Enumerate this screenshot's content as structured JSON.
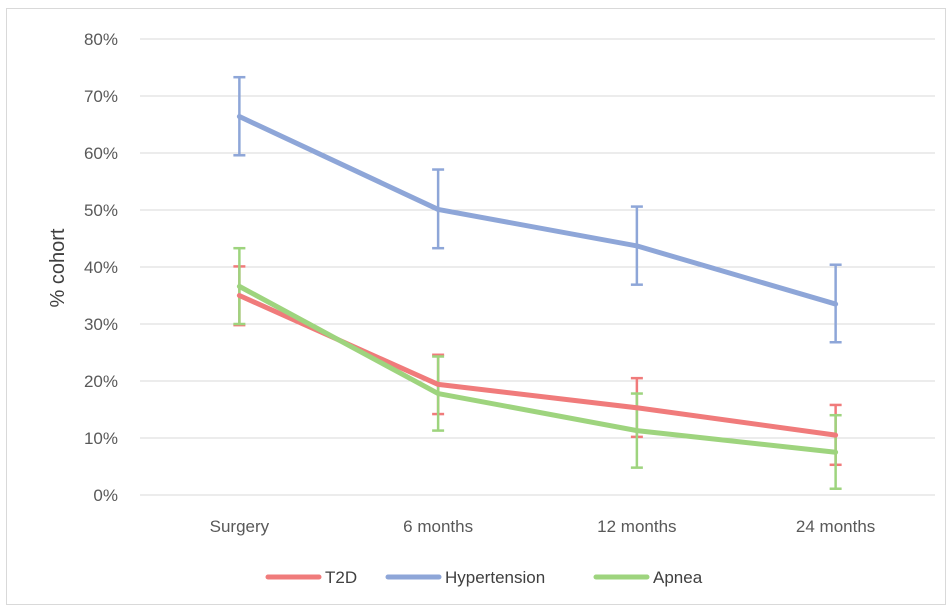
{
  "chart_data": {
    "type": "line",
    "title": "",
    "xlabel": "",
    "ylabel": "% cohort",
    "categories": [
      "Surgery",
      "6 months",
      "12 months",
      "24 months"
    ],
    "ylim": [
      0,
      80
    ],
    "yticks": [
      0,
      10,
      20,
      30,
      40,
      50,
      60,
      70,
      80
    ],
    "ytick_labels": [
      "0%",
      "10%",
      "20%",
      "30%",
      "40%",
      "50%",
      "60%",
      "70%",
      "80%"
    ],
    "grid": "horizontal",
    "legend_position": "bottom",
    "series": [
      {
        "name": "T2D",
        "color": "#f07b7b",
        "values": [
          35.0,
          19.4,
          15.3,
          10.5
        ],
        "err_low": [
          29.8,
          14.2,
          10.2,
          5.3
        ],
        "err_high": [
          40.1,
          24.6,
          20.5,
          15.8
        ]
      },
      {
        "name": "Hypertension",
        "color": "#8ea6d8",
        "values": [
          66.4,
          50.1,
          43.7,
          33.5
        ],
        "err_low": [
          59.6,
          43.3,
          36.9,
          26.8
        ],
        "err_high": [
          73.3,
          57.1,
          50.6,
          40.4
        ]
      },
      {
        "name": "Apnea",
        "color": "#9ed47e",
        "values": [
          36.6,
          17.8,
          11.3,
          7.5
        ],
        "err_low": [
          30.0,
          11.3,
          4.8,
          1.1
        ],
        "err_high": [
          43.3,
          24.3,
          17.8,
          14.0
        ]
      }
    ]
  }
}
